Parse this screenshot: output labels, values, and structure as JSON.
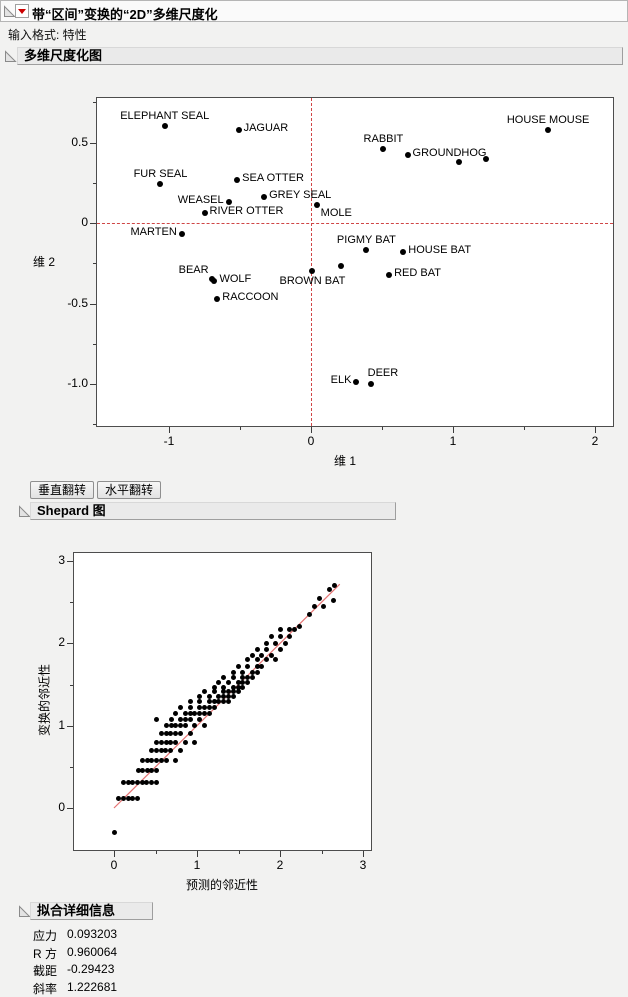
{
  "window": {
    "title": "带“区间”变换的“2D”多维尺度化",
    "input_format_label": "输入格式: 特性"
  },
  "sections": {
    "mds": {
      "title": "多维尺度化图"
    },
    "shepard": {
      "title": "Shepard 图"
    },
    "fit": {
      "title": "拟合详细信息"
    }
  },
  "buttons": {
    "flip_vertical": "垂直翻转",
    "flip_horizontal": "水平翻转"
  },
  "fit_details": {
    "rows": [
      {
        "label": "应力",
        "value": "0.093203"
      },
      {
        "label": "R 方",
        "value": "0.960064"
      },
      {
        "label": "截距",
        "value": "-0.29423"
      },
      {
        "label": "斜率",
        "value": "1.222681"
      }
    ]
  },
  "colors": {
    "reference_line": "#cf4545",
    "identity_line": "#e57373",
    "point": "#000000",
    "red_triangle": "#cc0000",
    "header_bg": "#eaeaea",
    "plot_bg": "#ffffff",
    "page_bg": "#f2f2f1"
  },
  "chart_data": [
    {
      "type": "scatter",
      "title": "多维尺度化图",
      "xlabel": "维 1",
      "ylabel": "维 2",
      "xlim": [
        -1.5,
        2.25
      ],
      "ylim": [
        -1.3,
        0.8
      ],
      "xticks": [
        -1,
        0,
        1,
        2
      ],
      "xtick_labels": [
        "-1",
        "0",
        "1",
        "2"
      ],
      "xticks_minor": [
        -0.5,
        0.5,
        1.5
      ],
      "yticks": [
        0.5,
        0,
        -0.5,
        -1
      ],
      "ytick_labels": [
        "0.5",
        "0",
        "-0.5",
        "-1.0"
      ],
      "yticks_minor": [
        0.75,
        0.25,
        -0.25,
        -0.75,
        -1.25
      ],
      "reference_lines": {
        "x": 0,
        "y": 0,
        "style": "dashed"
      },
      "grid": false,
      "points": [
        {
          "label": "ELEPHANT SEAL",
          "x": -1.03,
          "y": 0.6,
          "label_pos": "above"
        },
        {
          "label": "JAGUAR",
          "x": -0.51,
          "y": 0.58,
          "label_pos": "right"
        },
        {
          "label": "FUR SEAL",
          "x": -1.06,
          "y": 0.24,
          "label_pos": "above"
        },
        {
          "label": "SEA OTTER",
          "x": -0.52,
          "y": 0.27,
          "label_pos": "right"
        },
        {
          "label": "WEASEL",
          "x": -0.58,
          "y": 0.13,
          "label_pos": "left"
        },
        {
          "label": "GREY SEAL",
          "x": -0.33,
          "y": 0.16,
          "label_pos": "right"
        },
        {
          "label": "RIVER OTTER",
          "x": -0.75,
          "y": 0.06,
          "label_pos": "right"
        },
        {
          "label": "MOLE",
          "x": 0.04,
          "y": 0.11,
          "label_pos": "below-right"
        },
        {
          "label": "MARTEN",
          "x": -0.91,
          "y": -0.07,
          "label_pos": "left"
        },
        {
          "label": "BEAR",
          "x": -0.7,
          "y": -0.35,
          "label_pos": "above-left"
        },
        {
          "label": "WOLF",
          "x": -0.68,
          "y": -0.36,
          "label_pos": "right"
        },
        {
          "label": "RACCOON",
          "x": -0.66,
          "y": -0.47,
          "label_pos": "right"
        },
        {
          "label": "BROWN BAT",
          "x": 0.01,
          "y": -0.3,
          "label_pos": "below"
        },
        {
          "label": "",
          "x": 0.21,
          "y": -0.27,
          "label_pos": "none"
        },
        {
          "label": "PIGMY BAT",
          "x": 0.39,
          "y": -0.17,
          "label_pos": "above"
        },
        {
          "label": "HOUSE BAT",
          "x": 0.65,
          "y": -0.18,
          "label_pos": "right"
        },
        {
          "label": "RED BAT",
          "x": 0.55,
          "y": -0.32,
          "label_pos": "right"
        },
        {
          "label": "RABBIT",
          "x": 0.51,
          "y": 0.46,
          "label_pos": "above"
        },
        {
          "label": "GROUNDHOG",
          "x": 0.68,
          "y": 0.42,
          "label_pos": "right"
        },
        {
          "label": "",
          "x": 1.04,
          "y": 0.38,
          "label_pos": "none"
        },
        {
          "label": "",
          "x": 1.23,
          "y": 0.4,
          "label_pos": "none"
        },
        {
          "label": "HOUSE MOUSE",
          "x": 1.67,
          "y": 0.58,
          "label_pos": "above"
        },
        {
          "label": "ELK",
          "x": 0.32,
          "y": -0.99,
          "label_pos": "left"
        },
        {
          "label": "DEER",
          "x": 0.42,
          "y": -1.0,
          "label_pos": "above-right"
        }
      ]
    },
    {
      "type": "scatter",
      "title": "Shepard 图",
      "xlabel": "预测的邻近性",
      "ylabel": "变换的邻近性",
      "xlim": [
        -0.5,
        3.1
      ],
      "ylim": [
        -0.55,
        3.1
      ],
      "xticks": [
        0,
        1,
        2,
        3
      ],
      "xtick_labels": [
        "0",
        "1",
        "2",
        "3"
      ],
      "xticks_minor": [
        0.5,
        1.5,
        2.5
      ],
      "yticks": [
        0,
        1,
        2,
        3
      ],
      "ytick_labels": [
        "0",
        "1",
        "2",
        "3"
      ],
      "yticks_minor": [
        0.5,
        1.5,
        2.5
      ],
      "identity_line": {
        "from": [
          0,
          0
        ],
        "to": [
          2.72,
          2.72
        ]
      },
      "grid": false,
      "points": [
        [
          0.0,
          -0.3
        ],
        [
          0.06,
          0.12
        ],
        [
          0.11,
          0.12
        ],
        [
          0.17,
          0.12
        ],
        [
          0.22,
          0.12
        ],
        [
          0.28,
          0.12
        ],
        [
          0.11,
          0.31
        ],
        [
          0.17,
          0.31
        ],
        [
          0.22,
          0.31
        ],
        [
          0.28,
          0.31
        ],
        [
          0.34,
          0.31
        ],
        [
          0.39,
          0.31
        ],
        [
          0.45,
          0.31
        ],
        [
          0.51,
          0.31
        ],
        [
          0.29,
          0.46
        ],
        [
          0.34,
          0.46
        ],
        [
          0.4,
          0.46
        ],
        [
          0.45,
          0.46
        ],
        [
          0.51,
          0.46
        ],
        [
          0.34,
          0.58
        ],
        [
          0.4,
          0.58
        ],
        [
          0.45,
          0.58
        ],
        [
          0.51,
          0.58
        ],
        [
          0.57,
          0.58
        ],
        [
          0.63,
          0.58
        ],
        [
          0.74,
          0.58
        ],
        [
          0.45,
          0.7
        ],
        [
          0.51,
          0.7
        ],
        [
          0.57,
          0.7
        ],
        [
          0.62,
          0.7
        ],
        [
          0.68,
          0.7
        ],
        [
          0.8,
          0.7
        ],
        [
          0.51,
          0.8
        ],
        [
          0.57,
          0.8
        ],
        [
          0.63,
          0.8
        ],
        [
          0.68,
          0.8
        ],
        [
          0.74,
          0.8
        ],
        [
          0.86,
          0.8
        ],
        [
          0.97,
          0.8
        ],
        [
          0.57,
          0.9
        ],
        [
          0.63,
          0.9
        ],
        [
          0.68,
          0.9
        ],
        [
          0.74,
          0.9
        ],
        [
          0.8,
          0.9
        ],
        [
          0.92,
          0.9
        ],
        [
          0.63,
          1.0
        ],
        [
          0.69,
          1.0
        ],
        [
          0.74,
          1.0
        ],
        [
          0.8,
          1.0
        ],
        [
          0.86,
          1.0
        ],
        [
          0.97,
          1.0
        ],
        [
          1.09,
          1.0
        ],
        [
          0.51,
          1.08
        ],
        [
          0.69,
          1.08
        ],
        [
          0.8,
          1.08
        ],
        [
          0.86,
          1.08
        ],
        [
          0.92,
          1.08
        ],
        [
          1.03,
          1.08
        ],
        [
          0.74,
          1.15
        ],
        [
          0.86,
          1.15
        ],
        [
          0.92,
          1.15
        ],
        [
          0.97,
          1.15
        ],
        [
          1.03,
          1.15
        ],
        [
          1.09,
          1.15
        ],
        [
          1.15,
          1.15
        ],
        [
          0.8,
          1.22
        ],
        [
          0.92,
          1.22
        ],
        [
          1.03,
          1.22
        ],
        [
          1.09,
          1.22
        ],
        [
          1.15,
          1.22
        ],
        [
          1.21,
          1.22
        ],
        [
          0.92,
          1.3
        ],
        [
          1.03,
          1.3
        ],
        [
          1.15,
          1.3
        ],
        [
          1.21,
          1.3
        ],
        [
          1.26,
          1.3
        ],
        [
          1.32,
          1.3
        ],
        [
          1.38,
          1.3
        ],
        [
          1.03,
          1.36
        ],
        [
          1.15,
          1.36
        ],
        [
          1.26,
          1.36
        ],
        [
          1.32,
          1.36
        ],
        [
          1.38,
          1.36
        ],
        [
          1.44,
          1.36
        ],
        [
          1.09,
          1.42
        ],
        [
          1.21,
          1.42
        ],
        [
          1.32,
          1.42
        ],
        [
          1.38,
          1.42
        ],
        [
          1.44,
          1.42
        ],
        [
          1.5,
          1.42
        ],
        [
          1.21,
          1.47
        ],
        [
          1.32,
          1.47
        ],
        [
          1.44,
          1.47
        ],
        [
          1.5,
          1.47
        ],
        [
          1.55,
          1.47
        ],
        [
          1.26,
          1.52
        ],
        [
          1.38,
          1.52
        ],
        [
          1.5,
          1.52
        ],
        [
          1.55,
          1.52
        ],
        [
          1.61,
          1.52
        ],
        [
          1.32,
          1.58
        ],
        [
          1.44,
          1.58
        ],
        [
          1.55,
          1.58
        ],
        [
          1.61,
          1.58
        ],
        [
          1.67,
          1.58
        ],
        [
          1.44,
          1.65
        ],
        [
          1.55,
          1.65
        ],
        [
          1.67,
          1.65
        ],
        [
          1.73,
          1.65
        ],
        [
          1.5,
          1.72
        ],
        [
          1.61,
          1.72
        ],
        [
          1.73,
          1.72
        ],
        [
          1.78,
          1.72
        ],
        [
          1.61,
          1.8
        ],
        [
          1.73,
          1.8
        ],
        [
          1.84,
          1.8
        ],
        [
          1.95,
          1.8
        ],
        [
          1.67,
          1.85
        ],
        [
          1.78,
          1.85
        ],
        [
          1.9,
          1.85
        ],
        [
          1.73,
          1.92
        ],
        [
          1.84,
          1.92
        ],
        [
          2.01,
          1.92
        ],
        [
          1.84,
          2.0
        ],
        [
          1.95,
          2.0
        ],
        [
          2.07,
          2.0
        ],
        [
          1.9,
          2.08
        ],
        [
          2.01,
          2.08
        ],
        [
          2.12,
          2.08
        ],
        [
          2.01,
          2.17
        ],
        [
          2.12,
          2.17
        ],
        [
          2.18,
          2.17
        ],
        [
          2.24,
          2.2
        ],
        [
          2.35,
          2.35
        ],
        [
          2.41,
          2.45
        ],
        [
          2.52,
          2.45
        ],
        [
          2.64,
          2.52
        ],
        [
          2.47,
          2.55
        ],
        [
          2.6,
          2.66
        ],
        [
          2.66,
          2.7
        ]
      ]
    }
  ]
}
